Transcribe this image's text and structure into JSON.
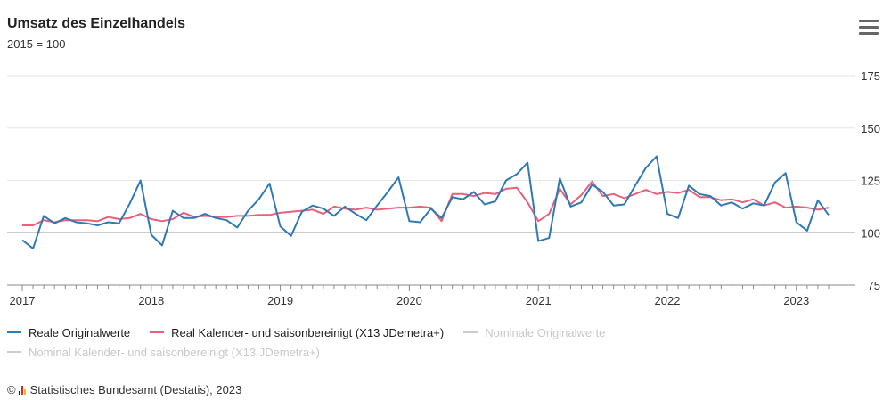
{
  "title": "Umsatz des Einzelhandels",
  "subtitle": "2015 = 100",
  "menu_icon": "hamburger-menu-icon",
  "legend": [
    {
      "label": "Reale Originalwerte",
      "color": "#2f7ab5",
      "active": true
    },
    {
      "label": "Real Kalender- und saisonbereinigt (X13 JDemetra+)",
      "color": "#e8607a",
      "active": true
    },
    {
      "label": "Nominale Originalwerte",
      "color": "#cccccc",
      "active": false
    },
    {
      "label": "Nominal Kalender- und saisonbereinigt (X13 JDemetra+)",
      "color": "#cccccc",
      "active": false
    }
  ],
  "source": {
    "copyright": "©",
    "text": "Statistisches Bundesamt (Destatis), 2023"
  },
  "chart_data": {
    "type": "line",
    "title": "Umsatz des Einzelhandels",
    "subtitle": "2015 = 100",
    "x_start": "2017-01",
    "x_frequency": "monthly",
    "x_ticks": [
      "2017",
      "2018",
      "2019",
      "2020",
      "2021",
      "2022",
      "2023"
    ],
    "ylim": [
      75,
      175
    ],
    "y_ticks": [
      75,
      100,
      125,
      150,
      175
    ],
    "y_axis_side": "right",
    "reference_line": 100,
    "grid": true,
    "legend_position": "bottom",
    "series": [
      {
        "name": "Reale Originalwerte",
        "color": "#2f7ab5",
        "values": [
          96.5,
          92.5,
          108,
          104.5,
          107,
          105,
          104.5,
          103.5,
          105,
          104.5,
          114,
          125,
          99,
          94,
          110.5,
          107,
          107,
          109,
          107,
          106,
          102.5,
          110.5,
          116,
          123.5,
          103,
          98.5,
          110,
          113,
          111.5,
          108,
          112.5,
          109,
          106,
          113,
          119.5,
          126.5,
          105.5,
          105,
          111.5,
          107,
          117,
          116,
          119.5,
          113.5,
          115,
          125,
          128,
          133.5,
          96,
          97.5,
          126,
          112.5,
          114.5,
          123,
          119.5,
          113,
          113.5,
          122.5,
          131,
          136.5,
          109,
          107,
          122.5,
          118.5,
          117.5,
          113,
          114.5,
          111.5,
          114,
          113,
          124,
          128.5,
          105,
          101,
          115.5,
          108.5
        ]
      },
      {
        "name": "Real Kalender- und saisonbereinigt (X13 JDemetra+)",
        "color": "#e8607a",
        "values": [
          103.5,
          103.5,
          106,
          105,
          106,
          106,
          106,
          105.5,
          107.5,
          106.5,
          107,
          109,
          106.5,
          105.5,
          106.5,
          109.5,
          107.5,
          108,
          107.5,
          107.5,
          108,
          108,
          108.5,
          108.5,
          109.5,
          110,
          110.5,
          111,
          109,
          112.5,
          111.5,
          111,
          112,
          111,
          111.5,
          112,
          112,
          112.5,
          112,
          105.5,
          118.5,
          118.5,
          117.5,
          119,
          118.5,
          121,
          121.5,
          114.5,
          105.5,
          109,
          121,
          113.5,
          118,
          124.5,
          117.5,
          118.5,
          116.5,
          118.5,
          120.5,
          118.5,
          119.5,
          119,
          120.5,
          117,
          117,
          115.5,
          116,
          114.5,
          116,
          113,
          114.5,
          112,
          112.5,
          112,
          111,
          112
        ]
      }
    ]
  }
}
